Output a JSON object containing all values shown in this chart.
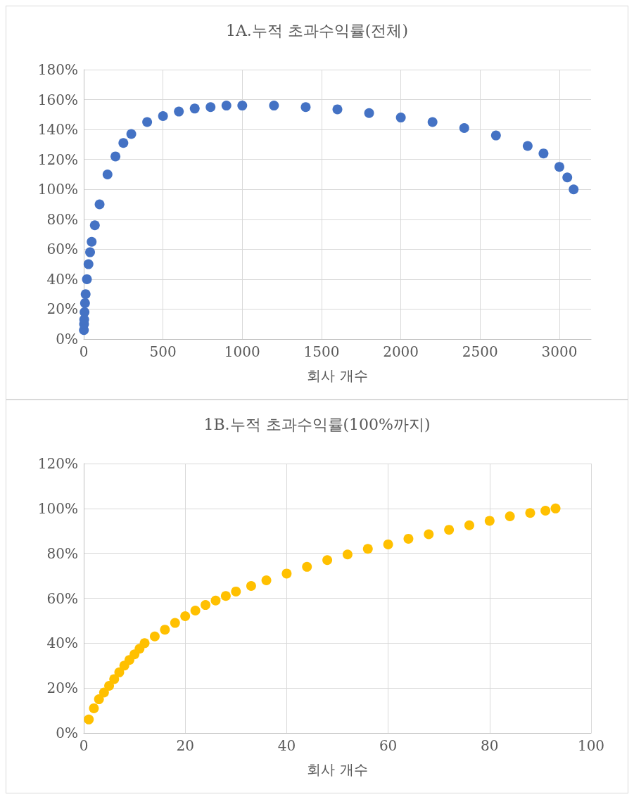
{
  "chart_data": [
    {
      "type": "scatter",
      "title": "1A.누적 초과수익률(전체)",
      "xlabel": "회사 개수",
      "marker": "circle",
      "grid": true,
      "xlim": [
        0,
        3200
      ],
      "xticks": [
        0,
        500,
        1000,
        1500,
        2000,
        2500,
        3000
      ],
      "ylim": [
        0,
        180
      ],
      "yticks": [
        {
          "value": 0,
          "label": "0%"
        },
        {
          "value": 20,
          "label": "20%"
        },
        {
          "value": 40,
          "label": "40%"
        },
        {
          "value": 60,
          "label": "60%"
        },
        {
          "value": 80,
          "label": "80%"
        },
        {
          "value": 100,
          "label": "100%"
        },
        {
          "value": 120,
          "label": "120%"
        },
        {
          "value": 140,
          "label": "140%"
        },
        {
          "value": 160,
          "label": "160%"
        },
        {
          "value": 180,
          "label": "180%"
        }
      ],
      "series": [
        {
          "color": "#4472c4",
          "x": [
            1,
            2,
            3,
            5,
            8,
            12,
            20,
            30,
            40,
            50,
            70,
            100,
            150,
            200,
            250,
            300,
            400,
            500,
            600,
            700,
            800,
            900,
            1000,
            1200,
            1400,
            1600,
            1800,
            2000,
            2200,
            2400,
            2600,
            2800,
            2900,
            3000,
            3050,
            3090
          ],
          "values": [
            6,
            10,
            13,
            18,
            24,
            30,
            40,
            50,
            58,
            65,
            76,
            90,
            110,
            122,
            131,
            137,
            145,
            149,
            152,
            154,
            155,
            156,
            156,
            156,
            155,
            153.5,
            151,
            148,
            145,
            141,
            136,
            129,
            124,
            115,
            108,
            100
          ]
        }
      ]
    },
    {
      "type": "scatter",
      "title": "1B.누적 초과수익률(100%까지)",
      "xlabel": "회사 개수",
      "marker": "circle",
      "grid": true,
      "xlim": [
        0,
        100
      ],
      "xticks": [
        0,
        20,
        40,
        60,
        80,
        100
      ],
      "ylim": [
        0,
        120
      ],
      "yticks": [
        {
          "value": 0,
          "label": "0%"
        },
        {
          "value": 20,
          "label": "20%"
        },
        {
          "value": 40,
          "label": "40%"
        },
        {
          "value": 60,
          "label": "60%"
        },
        {
          "value": 80,
          "label": "80%"
        },
        {
          "value": 100,
          "label": "100%"
        },
        {
          "value": 120,
          "label": "120%"
        }
      ],
      "series": [
        {
          "color": "#ffc000",
          "x": [
            1,
            2,
            3,
            4,
            5,
            6,
            7,
            8,
            9,
            10,
            11,
            12,
            14,
            16,
            18,
            20,
            22,
            24,
            26,
            28,
            30,
            33,
            36,
            40,
            44,
            48,
            52,
            56,
            60,
            64,
            68,
            72,
            76,
            80,
            84,
            88,
            91,
            93
          ],
          "values": [
            6,
            11,
            15,
            18,
            21,
            24,
            27,
            30,
            32.5,
            35,
            37.5,
            40,
            43,
            46,
            49,
            52,
            54.5,
            57,
            59,
            61,
            63,
            65.5,
            68,
            71,
            74,
            77,
            79.5,
            82,
            84,
            86.5,
            88.5,
            90.5,
            92.5,
            94.5,
            96.5,
            98,
            99,
            100
          ]
        }
      ]
    }
  ]
}
